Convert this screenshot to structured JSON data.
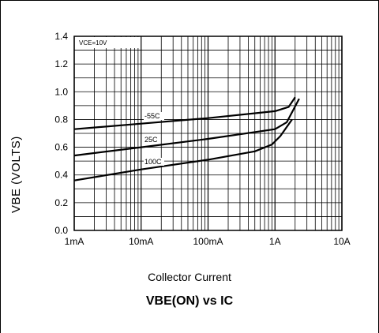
{
  "chart_data": {
    "type": "line",
    "x_scale": "log",
    "xlabel": "Collector Current",
    "ylabel": "VBE (VOLTS)",
    "subtitle": "VBE(ON) vs IC",
    "condition_label": "VCE=10V",
    "ylim": [
      0,
      1.4
    ],
    "xlim": [
      0.001,
      10
    ],
    "x_ticks": [
      0.001,
      0.01,
      0.1,
      1,
      10
    ],
    "x_tick_labels": [
      "1mA",
      "10mA",
      "100mA",
      "1A",
      "10A"
    ],
    "y_ticks": [
      0.0,
      0.2,
      0.4,
      0.6,
      0.8,
      1.0,
      1.2,
      1.4
    ],
    "y_tick_labels": [
      "0.0",
      "0.2",
      "0.4",
      "0.6",
      "0.8",
      "1.0",
      "1.2",
      "1.4"
    ],
    "grid": true,
    "series": [
      {
        "name": "-55C",
        "points": [
          [
            0.001,
            0.73
          ],
          [
            0.01,
            0.77
          ],
          [
            0.1,
            0.81
          ],
          [
            1,
            0.86
          ],
          [
            1.6,
            0.89
          ],
          [
            2.0,
            0.96
          ]
        ]
      },
      {
        "name": "25C",
        "points": [
          [
            0.001,
            0.54
          ],
          [
            0.01,
            0.6
          ],
          [
            0.1,
            0.66
          ],
          [
            1,
            0.73
          ],
          [
            1.5,
            0.78
          ],
          [
            2.3,
            0.95
          ]
        ]
      },
      {
        "name": "100C",
        "points": [
          [
            0.001,
            0.36
          ],
          [
            0.01,
            0.44
          ],
          [
            0.1,
            0.51
          ],
          [
            0.5,
            0.57
          ],
          [
            0.9,
            0.62
          ],
          [
            1.2,
            0.68
          ],
          [
            1.8,
            0.8
          ]
        ]
      }
    ]
  }
}
